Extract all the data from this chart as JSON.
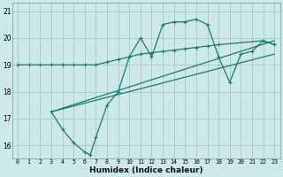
{
  "xlabel": "Humidex (Indice chaleur)",
  "xlim": [
    -0.5,
    23.5
  ],
  "ylim": [
    15.5,
    21.3
  ],
  "yticks": [
    16,
    17,
    18,
    19,
    20,
    21
  ],
  "xticks": [
    0,
    1,
    2,
    3,
    4,
    5,
    6,
    7,
    8,
    9,
    10,
    11,
    12,
    13,
    14,
    15,
    16,
    17,
    18,
    19,
    20,
    21,
    22,
    23
  ],
  "bg_color": "#cce8e8",
  "grid_color": "#aacccc",
  "line_color": "#1a7a6e",
  "series": [
    {
      "x": [
        0,
        1,
        2,
        3,
        4,
        5,
        6,
        7,
        8,
        9,
        10,
        11,
        12,
        13,
        14,
        15,
        16,
        17,
        18,
        22,
        23
      ],
      "y": [
        19.0,
        19.0,
        19.0,
        19.0,
        19.0,
        19.0,
        19.0,
        19.0,
        19.1,
        19.2,
        19.3,
        19.4,
        19.45,
        19.5,
        19.55,
        19.6,
        19.65,
        19.7,
        19.75,
        19.9,
        19.75
      ],
      "marker": true
    },
    {
      "x": [
        3,
        4,
        5,
        6,
        6.5,
        7,
        8,
        9,
        10,
        11,
        12,
        13,
        14,
        15,
        16,
        17,
        18,
        19,
        20,
        21,
        22,
        23
      ],
      "y": [
        17.25,
        16.6,
        16.1,
        15.75,
        15.65,
        16.3,
        17.5,
        18.0,
        19.3,
        20.0,
        19.3,
        20.5,
        20.6,
        20.6,
        20.7,
        20.5,
        19.3,
        18.35,
        19.4,
        19.5,
        19.9,
        19.75
      ],
      "marker": true
    },
    {
      "x": [
        3,
        23
      ],
      "y": [
        17.25,
        19.9
      ],
      "marker": false
    },
    {
      "x": [
        3,
        23
      ],
      "y": [
        17.25,
        19.4
      ],
      "marker": false
    }
  ]
}
